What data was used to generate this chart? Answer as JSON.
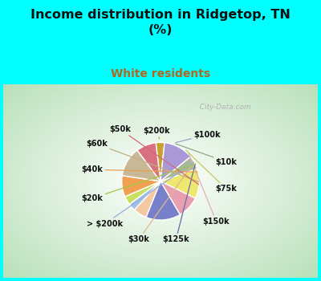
{
  "title": "Income distribution in Ridgetop, TN\n(%)",
  "subtitle": "White residents",
  "title_color": "#111111",
  "subtitle_color": "#b06820",
  "bg_color": "#00ffff",
  "chart_bg_outer": "#b8ddb8",
  "labels": [
    "$200k",
    "$100k",
    "$10k",
    "$75k",
    "$150k",
    "$125k",
    "$30k",
    "> $200k",
    "$20k",
    "$40k",
    "$60k",
    "$50k"
  ],
  "sizes": [
    3.5,
    12.0,
    5.5,
    12.0,
    9.0,
    14.0,
    5.5,
    3.0,
    3.5,
    8.5,
    12.0,
    8.0
  ],
  "colors": [
    "#c8a030",
    "#a898d8",
    "#a8b898",
    "#eee870",
    "#e8a0b0",
    "#7880cc",
    "#f4c8a0",
    "#a0c0e8",
    "#c8e060",
    "#f0a050",
    "#c8b898",
    "#d87080"
  ],
  "watermark": "City-Data.com",
  "startangle": 97
}
